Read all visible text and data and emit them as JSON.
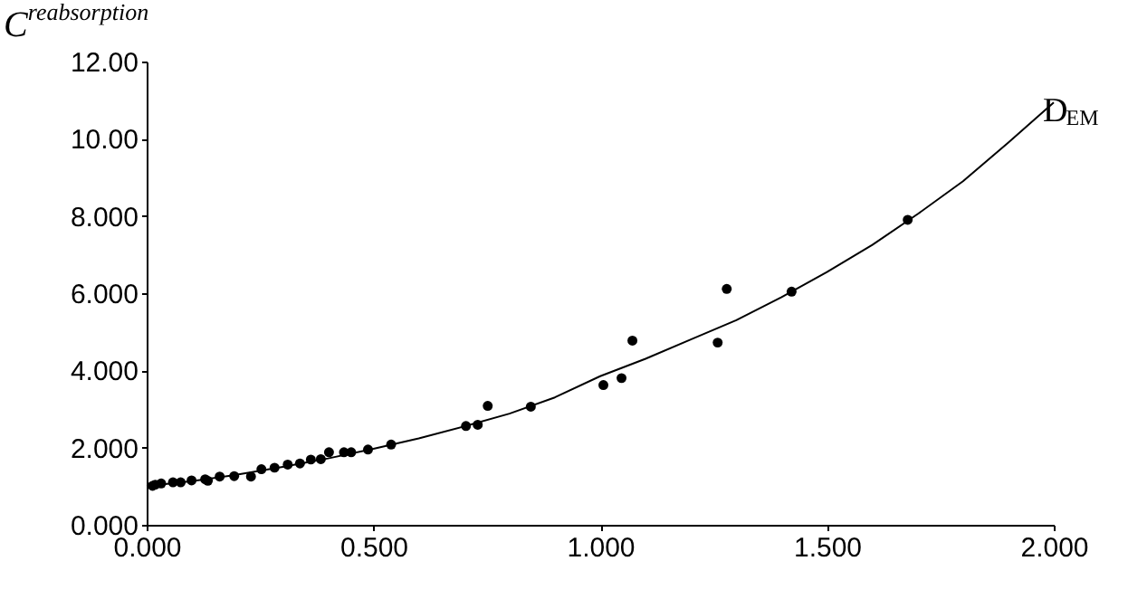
{
  "chart_data": {
    "type": "scatter",
    "xlabel": "D$_{EM}$",
    "ylabel": "C$^{reabsorption}$",
    "series": [
      {
        "color": "#000000",
        "marker": "circle",
        "x": [
          0.013,
          0.019,
          0.032,
          0.058,
          0.075,
          0.099,
          0.129,
          0.135,
          0.161,
          0.193,
          0.23,
          0.253,
          0.282,
          0.311,
          0.338,
          0.362,
          0.384,
          0.402,
          0.435,
          0.451,
          0.488,
          0.539,
          0.704,
          0.73,
          0.752,
          0.847,
          1.007,
          1.047,
          1.071,
          1.259,
          1.279,
          1.422,
          1.678
        ],
        "values": [
          1.01,
          1.04,
          1.07,
          1.1,
          1.1,
          1.15,
          1.18,
          1.14,
          1.25,
          1.26,
          1.25,
          1.44,
          1.48,
          1.56,
          1.59,
          1.69,
          1.7,
          1.88,
          1.88,
          1.88,
          1.95,
          2.08,
          2.56,
          2.59,
          3.08,
          3.06,
          3.62,
          3.8,
          4.77,
          4.72,
          6.11,
          6.04,
          7.9
        ]
      },
      {
        "type": "line",
        "color": "#000000",
        "marker": "none",
        "x": [
          0,
          0.1,
          0.2,
          0.3,
          0.4,
          0.5,
          0.6,
          0.7,
          0.8,
          0.9,
          1.0,
          1.1,
          1.2,
          1.3,
          1.4,
          1.5,
          1.6,
          1.7,
          1.8,
          1.9,
          2.0
        ],
        "values": [
          1.0,
          1.13,
          1.3,
          1.5,
          1.72,
          1.97,
          2.24,
          2.55,
          2.88,
          3.3,
          3.85,
          4.3,
          4.8,
          5.3,
          5.9,
          6.55,
          7.25,
          8.05,
          8.9,
          9.9,
          10.94
        ]
      }
    ],
    "xlim": [
      0,
      2
    ],
    "ylim": [
      0,
      12
    ],
    "xticks": [
      {
        "value": 0,
        "label": "0.000"
      },
      {
        "value": 0.5,
        "label": "0.500"
      },
      {
        "value": 1,
        "label": "1.000"
      },
      {
        "value": 1.5,
        "label": "1.500"
      },
      {
        "value": 2,
        "label": "2.000"
      }
    ],
    "yticks": [
      {
        "value": 0,
        "label": "0.000"
      },
      {
        "value": 2,
        "label": "2.000"
      },
      {
        "value": 4,
        "label": "4.000"
      },
      {
        "value": 6,
        "label": "6.000"
      },
      {
        "value": 8,
        "label": "8.000"
      },
      {
        "value": 10,
        "label": "10.00"
      },
      {
        "value": 12,
        "label": "12.00"
      }
    ],
    "grid": false
  }
}
